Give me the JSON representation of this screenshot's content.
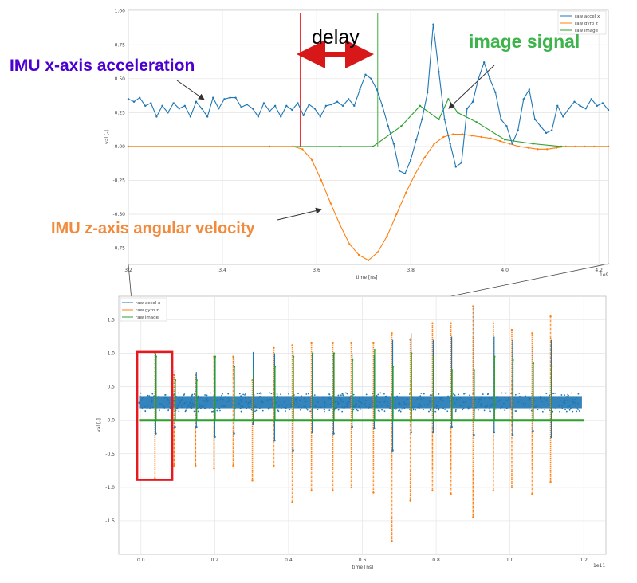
{
  "colors": {
    "accel": "#1f77b4",
    "gyro": "#ff7f0e",
    "image": "#2ca02c",
    "highlight": "#e8191e",
    "delay_arrow": "#d81818",
    "ann_accel": "#4b00d1",
    "ann_image": "#3cb44b",
    "ann_gyro": "#f2893b"
  },
  "annotations": {
    "accel_label": "IMU x-axis acceleration",
    "image_label": "image signal",
    "gyro_label": "IMU z-axis angular velocity",
    "delay_label": "delay"
  },
  "chart_data": [
    {
      "type": "line",
      "panel": "zoomed",
      "xlabel": "time [ns]",
      "ylabel": "val [-]",
      "x_offset_label": "1e9",
      "xlim": [
        3.2,
        4.22
      ],
      "ylim": [
        -0.87,
        1.01
      ],
      "xticks": [
        "3.2",
        "3.4",
        "3.6",
        "3.8",
        "4.0",
        "4.2"
      ],
      "yticks": [
        "1.00",
        "0.75",
        "0.50",
        "0.25",
        "0.00",
        "-0.25",
        "-0.50",
        "-0.75"
      ],
      "grid": true,
      "legend_position": "top-right",
      "delay_markers": [
        3.565,
        3.73
      ],
      "series": [
        {
          "name": "raw accel x",
          "x": [
            3.2,
            3.212,
            3.224,
            3.236,
            3.248,
            3.26,
            3.272,
            3.284,
            3.296,
            3.308,
            3.32,
            3.332,
            3.344,
            3.356,
            3.368,
            3.38,
            3.392,
            3.404,
            3.416,
            3.428,
            3.44,
            3.452,
            3.464,
            3.476,
            3.488,
            3.5,
            3.512,
            3.524,
            3.536,
            3.548,
            3.56,
            3.572,
            3.584,
            3.596,
            3.608,
            3.62,
            3.632,
            3.644,
            3.656,
            3.668,
            3.68,
            3.692,
            3.704,
            3.716,
            3.728,
            3.74,
            3.752,
            3.764,
            3.776,
            3.788,
            3.8,
            3.812,
            3.824,
            3.836,
            3.848,
            3.86,
            3.872,
            3.884,
            3.896,
            3.908,
            3.92,
            3.932,
            3.944,
            3.956,
            3.968,
            3.98,
            3.992,
            4.004,
            4.016,
            4.028,
            4.04,
            4.052,
            4.064,
            4.076,
            4.088,
            4.1,
            4.112,
            4.124,
            4.136,
            4.148,
            4.16,
            4.172,
            4.184,
            4.196,
            4.208,
            4.22
          ],
          "values": [
            0.35,
            0.33,
            0.36,
            0.3,
            0.32,
            0.22,
            0.3,
            0.25,
            0.32,
            0.28,
            0.3,
            0.22,
            0.33,
            0.28,
            0.22,
            0.36,
            0.28,
            0.35,
            0.36,
            0.36,
            0.29,
            0.31,
            0.28,
            0.22,
            0.32,
            0.26,
            0.3,
            0.22,
            0.3,
            0.27,
            0.32,
            0.23,
            0.31,
            0.28,
            0.22,
            0.3,
            0.31,
            0.33,
            0.3,
            0.35,
            0.3,
            0.42,
            0.53,
            0.5,
            0.42,
            0.3,
            0.15,
            0.02,
            -0.18,
            -0.2,
            -0.1,
            0.05,
            0.2,
            0.4,
            0.9,
            0.55,
            0.2,
            0.02,
            -0.15,
            -0.12,
            0.28,
            0.33,
            0.5,
            0.62,
            0.5,
            0.4,
            0.2,
            0.15,
            0.02,
            0.12,
            0.35,
            0.42,
            0.2,
            0.15,
            0.1,
            0.12,
            0.3,
            0.22,
            0.28,
            0.33,
            0.3,
            0.28,
            0.35,
            0.3,
            0.32,
            0.27
          ],
          "comment": ""
        },
        {
          "name": "raw gyro z",
          "x": [
            3.2,
            3.55,
            3.57,
            3.59,
            3.61,
            3.63,
            3.65,
            3.67,
            3.69,
            3.71,
            3.73,
            3.75,
            3.77,
            3.79,
            3.81,
            3.83,
            3.85,
            3.87,
            3.89,
            3.91,
            3.93,
            3.95,
            3.97,
            3.99,
            4.01,
            4.03,
            4.05,
            4.07,
            4.09,
            4.11,
            4.13,
            4.15,
            4.17,
            4.19,
            4.22
          ],
          "values": [
            0.0,
            0.0,
            -0.02,
            -0.1,
            -0.25,
            -0.42,
            -0.58,
            -0.72,
            -0.8,
            -0.84,
            -0.78,
            -0.66,
            -0.5,
            -0.34,
            -0.2,
            -0.08,
            0.02,
            0.07,
            0.09,
            0.09,
            0.08,
            0.07,
            0.06,
            0.04,
            0.02,
            0.0,
            -0.01,
            -0.02,
            -0.02,
            -0.01,
            0.0,
            0.0,
            0.0,
            0.0,
            0.0
          ]
        },
        {
          "name": "raw image",
          "x": [
            3.2,
            3.5,
            3.65,
            3.72,
            3.78,
            3.82,
            3.86,
            3.88,
            3.9,
            3.94,
            4.0,
            4.06,
            4.12,
            4.22
          ],
          "values": [
            0.0,
            0.0,
            0.0,
            0.0,
            0.15,
            0.3,
            0.2,
            0.35,
            0.25,
            0.18,
            0.05,
            0.02,
            0.0,
            0.0
          ]
        }
      ]
    },
    {
      "type": "line",
      "panel": "overview",
      "xlabel": "time [ns]",
      "ylabel": "val [-]",
      "x_offset_label": "1e11",
      "xlim": [
        -0.06,
        1.26
      ],
      "ylim": [
        -2.0,
        1.85
      ],
      "xticks": [
        "0.0",
        "0.2",
        "0.4",
        "0.6",
        "0.8",
        "1.0",
        "1.2"
      ],
      "yticks": [
        "1.5",
        "1.0",
        "0.5",
        "0.0",
        "-0.5",
        "-1.0",
        "-1.5"
      ],
      "grid": true,
      "legend_position": "top-left",
      "highlight_box_x": [
        -0.01,
        0.085
      ],
      "highlight_box_y": [
        -0.89,
        1.02
      ],
      "series": [
        {
          "name": "raw accel x",
          "band": [
            0.18,
            0.36
          ],
          "events_x": [
            0.038,
            0.09,
            0.148,
            0.198,
            0.25,
            0.302,
            0.36,
            0.41,
            0.462,
            0.52,
            0.57,
            0.63,
            0.68,
            0.73,
            0.79,
            0.84,
            0.9,
            0.955,
            1.005,
            1.06,
            1.11
          ],
          "peaks": [
            1.0,
            0.75,
            0.72,
            0.95,
            0.95,
            1.02,
            1.0,
            1.03,
            1.0,
            1.0,
            1.0,
            0.97,
            1.2,
            1.3,
            1.2,
            1.25,
            1.7,
            1.25,
            1.2,
            1.1,
            1.2
          ],
          "troughs": [
            -0.2,
            -0.1,
            -0.1,
            -0.25,
            -0.2,
            -0.05,
            -0.3,
            -0.45,
            -0.18,
            -0.2,
            -0.1,
            -0.12,
            -0.45,
            -0.18,
            -0.18,
            -0.1,
            -0.22,
            -0.18,
            -0.22,
            -0.16,
            -0.25
          ]
        },
        {
          "name": "raw gyro z",
          "events_x": [
            0.038,
            0.09,
            0.148,
            0.198,
            0.25,
            0.302,
            0.36,
            0.41,
            0.462,
            0.52,
            0.57,
            0.63,
            0.68,
            0.73,
            0.79,
            0.84,
            0.9,
            0.955,
            1.005,
            1.06,
            1.11
          ],
          "peaks": [
            1.0,
            0.68,
            0.68,
            0.95,
            0.95,
            0.6,
            1.08,
            1.12,
            1.15,
            1.15,
            1.15,
            1.15,
            1.3,
            1.2,
            1.45,
            1.45,
            1.7,
            1.45,
            1.35,
            1.3,
            1.55
          ],
          "troughs": [
            -0.87,
            -0.68,
            -0.68,
            -0.72,
            -0.68,
            -0.9,
            -0.68,
            -1.22,
            -1.05,
            -1.05,
            -1.0,
            -1.08,
            -1.8,
            -1.2,
            -1.05,
            -1.1,
            -1.45,
            -1.05,
            -1.0,
            -1.1,
            -0.92
          ]
        },
        {
          "name": "raw image",
          "baseline": 0.0,
          "events_x": [
            0.038,
            0.09,
            0.148,
            0.198,
            0.25,
            0.302,
            0.36,
            0.41,
            0.462,
            0.52,
            0.57,
            0.63,
            0.68,
            0.73,
            0.79,
            0.84,
            0.9,
            0.955,
            1.005,
            1.06,
            1.11
          ],
          "peaks": [
            0.95,
            0.6,
            0.6,
            0.95,
            0.8,
            0.75,
            0.8,
            0.95,
            1.0,
            1.0,
            0.9,
            1.05,
            0.8,
            1.0,
            0.95,
            0.75,
            0.75,
            0.95,
            0.9,
            0.85,
            0.8
          ]
        }
      ]
    }
  ]
}
